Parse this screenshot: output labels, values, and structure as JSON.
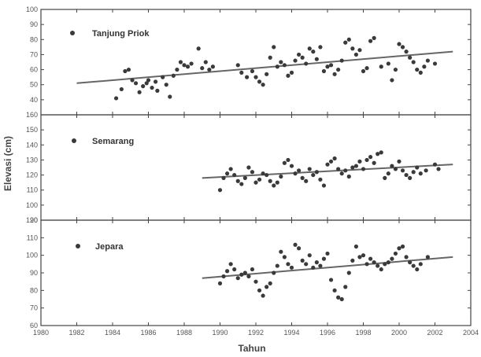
{
  "chart_data": [
    {
      "type": "scatter",
      "series": [
        {
          "name": "Tanjung Priok",
          "points": [
            [
              1984.2,
              41
            ],
            [
              1984.5,
              47
            ],
            [
              1984.7,
              59
            ],
            [
              1984.9,
              60
            ],
            [
              1985.1,
              53
            ],
            [
              1985.3,
              51
            ],
            [
              1985.5,
              45
            ],
            [
              1985.7,
              49
            ],
            [
              1985.9,
              51
            ],
            [
              1986.0,
              53
            ],
            [
              1986.2,
              48
            ],
            [
              1986.4,
              52
            ],
            [
              1986.5,
              46
            ],
            [
              1986.8,
              55
            ],
            [
              1987.0,
              50
            ],
            [
              1987.2,
              42
            ],
            [
              1987.4,
              56
            ],
            [
              1987.6,
              60
            ],
            [
              1987.8,
              65
            ],
            [
              1988.0,
              63
            ],
            [
              1988.2,
              62
            ],
            [
              1988.4,
              64
            ],
            [
              1988.8,
              74
            ],
            [
              1989.0,
              61
            ],
            [
              1989.2,
              65
            ],
            [
              1989.4,
              60
            ],
            [
              1989.6,
              62
            ],
            [
              1991.0,
              63
            ],
            [
              1991.2,
              58
            ],
            [
              1991.5,
              55
            ],
            [
              1991.8,
              59
            ],
            [
              1992.0,
              55
            ],
            [
              1992.2,
              52
            ],
            [
              1992.4,
              50
            ],
            [
              1992.6,
              57
            ],
            [
              1992.8,
              68
            ],
            [
              1993.0,
              75
            ],
            [
              1993.2,
              62
            ],
            [
              1993.4,
              65
            ],
            [
              1993.6,
              63
            ],
            [
              1993.8,
              56
            ],
            [
              1994.0,
              58
            ],
            [
              1994.2,
              66
            ],
            [
              1994.4,
              70
            ],
            [
              1994.6,
              68
            ],
            [
              1994.8,
              64
            ],
            [
              1995.0,
              74
            ],
            [
              1995.2,
              72
            ],
            [
              1995.4,
              67
            ],
            [
              1995.6,
              75
            ],
            [
              1995.8,
              59
            ],
            [
              1996.0,
              62
            ],
            [
              1996.2,
              63
            ],
            [
              1996.4,
              57
            ],
            [
              1996.6,
              60
            ],
            [
              1996.8,
              66
            ],
            [
              1997.0,
              78
            ],
            [
              1997.2,
              80
            ],
            [
              1997.4,
              74
            ],
            [
              1997.6,
              70
            ],
            [
              1997.8,
              73
            ],
            [
              1998.0,
              59
            ],
            [
              1998.2,
              61
            ],
            [
              1998.4,
              79
            ],
            [
              1998.6,
              81
            ],
            [
              1999.0,
              62
            ],
            [
              1999.4,
              64
            ],
            [
              1999.6,
              53
            ],
            [
              1999.8,
              60
            ],
            [
              2000.0,
              77
            ],
            [
              2000.2,
              75
            ],
            [
              2000.4,
              72
            ],
            [
              2000.6,
              68
            ],
            [
              2000.8,
              65
            ],
            [
              2001.0,
              60
            ],
            [
              2001.2,
              58
            ],
            [
              2001.4,
              62
            ],
            [
              2001.6,
              66
            ],
            [
              2002.0,
              64
            ]
          ],
          "trend": [
            [
              1982,
              51
            ],
            [
              2003,
              72
            ]
          ]
        }
      ],
      "ylim": [
        30,
        100
      ],
      "yticks": [
        "40",
        "50",
        "60",
        "70",
        "80",
        "90",
        "100"
      ]
    },
    {
      "type": "scatter",
      "series": [
        {
          "name": "Semarang",
          "points": [
            [
              1990.0,
              110
            ],
            [
              1990.2,
              118
            ],
            [
              1990.4,
              121
            ],
            [
              1990.6,
              124
            ],
            [
              1990.8,
              120
            ],
            [
              1991.0,
              116
            ],
            [
              1991.2,
              114
            ],
            [
              1991.4,
              118
            ],
            [
              1991.6,
              125
            ],
            [
              1991.8,
              122
            ],
            [
              1992.0,
              115
            ],
            [
              1992.2,
              117
            ],
            [
              1992.4,
              121
            ],
            [
              1992.6,
              120
            ],
            [
              1992.8,
              116
            ],
            [
              1993.0,
              113
            ],
            [
              1993.2,
              115
            ],
            [
              1993.4,
              119
            ],
            [
              1993.6,
              128
            ],
            [
              1993.8,
              130
            ],
            [
              1994.0,
              126
            ],
            [
              1994.2,
              121
            ],
            [
              1994.4,
              123
            ],
            [
              1994.6,
              118
            ],
            [
              1994.8,
              116
            ],
            [
              1995.0,
              124
            ],
            [
              1995.2,
              120
            ],
            [
              1995.4,
              122
            ],
            [
              1995.6,
              117
            ],
            [
              1995.8,
              113
            ],
            [
              1996.0,
              127
            ],
            [
              1996.2,
              129
            ],
            [
              1996.4,
              131
            ],
            [
              1996.6,
              124
            ],
            [
              1996.8,
              121
            ],
            [
              1997.0,
              123
            ],
            [
              1997.2,
              119
            ],
            [
              1997.4,
              125
            ],
            [
              1997.6,
              126
            ],
            [
              1997.8,
              129
            ],
            [
              1998.0,
              124
            ],
            [
              1998.2,
              130
            ],
            [
              1998.4,
              132
            ],
            [
              1998.6,
              128
            ],
            [
              1998.8,
              134
            ],
            [
              1999.0,
              135
            ],
            [
              1999.2,
              118
            ],
            [
              1999.4,
              121
            ],
            [
              1999.6,
              126
            ],
            [
              1999.8,
              124
            ],
            [
              2000.0,
              129
            ],
            [
              2000.2,
              123
            ],
            [
              2000.4,
              120
            ],
            [
              2000.6,
              118
            ],
            [
              2000.8,
              122
            ],
            [
              2001.0,
              125
            ],
            [
              2001.2,
              121
            ],
            [
              2001.5,
              123
            ],
            [
              2002.0,
              127
            ],
            [
              2002.2,
              124
            ]
          ],
          "trend": [
            [
              1989,
              118
            ],
            [
              2003,
              127
            ]
          ]
        }
      ],
      "ylim": [
        90,
        160
      ],
      "yticks": [
        "90",
        "100",
        "110",
        "120",
        "130",
        "140",
        "150",
        "160"
      ]
    },
    {
      "type": "scatter",
      "series": [
        {
          "name": "Jepara",
          "points": [
            [
              1990.0,
              84
            ],
            [
              1990.2,
              88
            ],
            [
              1990.4,
              91
            ],
            [
              1990.6,
              95
            ],
            [
              1990.8,
              92
            ],
            [
              1991.0,
              87
            ],
            [
              1991.2,
              89
            ],
            [
              1991.4,
              90
            ],
            [
              1991.6,
              88
            ],
            [
              1991.8,
              92
            ],
            [
              1992.0,
              85
            ],
            [
              1992.2,
              80
            ],
            [
              1992.4,
              77
            ],
            [
              1992.6,
              82
            ],
            [
              1992.8,
              84
            ],
            [
              1993.0,
              90
            ],
            [
              1993.2,
              94
            ],
            [
              1993.4,
              102
            ],
            [
              1993.6,
              99
            ],
            [
              1993.8,
              95
            ],
            [
              1994.0,
              93
            ],
            [
              1994.2,
              106
            ],
            [
              1994.4,
              104
            ],
            [
              1994.6,
              97
            ],
            [
              1994.8,
              95
            ],
            [
              1995.0,
              100
            ],
            [
              1995.2,
              93
            ],
            [
              1995.4,
              96
            ],
            [
              1995.6,
              94
            ],
            [
              1995.8,
              98
            ],
            [
              1996.0,
              101
            ],
            [
              1996.2,
              86
            ],
            [
              1996.4,
              80
            ],
            [
              1996.6,
              76
            ],
            [
              1996.8,
              75
            ],
            [
              1997.0,
              82
            ],
            [
              1997.2,
              90
            ],
            [
              1997.4,
              97
            ],
            [
              1997.6,
              105
            ],
            [
              1997.8,
              99
            ],
            [
              1998.0,
              100
            ],
            [
              1998.2,
              95
            ],
            [
              1998.4,
              98
            ],
            [
              1998.6,
              96
            ],
            [
              1998.8,
              94
            ],
            [
              1999.0,
              92
            ],
            [
              1999.2,
              95
            ],
            [
              1999.4,
              96
            ],
            [
              1999.6,
              98
            ],
            [
              1999.8,
              101
            ],
            [
              2000.0,
              104
            ],
            [
              2000.2,
              105
            ],
            [
              2000.4,
              99
            ],
            [
              2000.6,
              96
            ],
            [
              2000.8,
              94
            ],
            [
              2001.0,
              92
            ],
            [
              2001.2,
              95
            ],
            [
              2001.6,
              99
            ]
          ],
          "trend": [
            [
              1989,
              87
            ],
            [
              2003,
              99
            ]
          ]
        }
      ],
      "ylim": [
        60,
        120
      ],
      "yticks": [
        "60",
        "70",
        "80",
        "90",
        "100",
        "110",
        "120"
      ]
    }
  ],
  "axes": {
    "xlabel": "Tahun",
    "ylabel": "Elevasi (cm)",
    "xlim": [
      1980,
      2004
    ],
    "xticks": [
      "1980",
      "1982",
      "1984",
      "1986",
      "1988",
      "1990",
      "1992",
      "1994",
      "1996",
      "1998",
      "2000",
      "2002",
      "2004"
    ]
  },
  "colors": {
    "marker": "#3a3a3a",
    "trend": "#666666",
    "frame": "#444444"
  }
}
